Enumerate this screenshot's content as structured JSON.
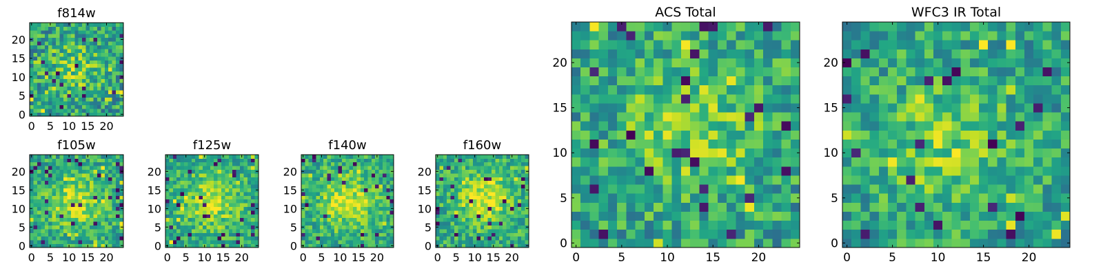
{
  "chart_data": [
    {
      "type": "heatmap",
      "title": "f814w",
      "grid_size": 25,
      "xlim": [
        -0.5,
        24.5
      ],
      "ylim": [
        -0.5,
        24.5
      ],
      "xticks": [
        0,
        5,
        10,
        15,
        20
      ],
      "yticks": [
        0,
        5,
        10,
        15,
        20
      ],
      "colormap": "viridis",
      "center": [
        12,
        12
      ],
      "peak": 0.72,
      "noise": 0.3,
      "seed": 11
    },
    {
      "type": "heatmap",
      "title": "f105w",
      "grid_size": 25,
      "xlim": [
        -0.5,
        24.5
      ],
      "ylim": [
        -0.5,
        24.5
      ],
      "xticks": [
        0,
        5,
        10,
        15,
        20
      ],
      "yticks": [
        0,
        5,
        10,
        15,
        20
      ],
      "colormap": "viridis",
      "center": [
        12,
        12
      ],
      "peak": 0.82,
      "noise": 0.24,
      "seed": 23
    },
    {
      "type": "heatmap",
      "title": "f125w",
      "grid_size": 25,
      "xlim": [
        -0.5,
        24.5
      ],
      "ylim": [
        -0.5,
        24.5
      ],
      "xticks": [
        0,
        5,
        10,
        15,
        20
      ],
      "yticks": [
        0,
        5,
        10,
        15,
        20
      ],
      "colormap": "viridis",
      "center": [
        12,
        12
      ],
      "peak": 0.82,
      "noise": 0.24,
      "seed": 37
    },
    {
      "type": "heatmap",
      "title": "f140w",
      "grid_size": 25,
      "xlim": [
        -0.5,
        24.5
      ],
      "ylim": [
        -0.5,
        24.5
      ],
      "xticks": [
        0,
        5,
        10,
        15,
        20
      ],
      "yticks": [
        0,
        5,
        10,
        15,
        20
      ],
      "colormap": "viridis",
      "center": [
        12,
        12
      ],
      "peak": 0.84,
      "noise": 0.24,
      "seed": 41
    },
    {
      "type": "heatmap",
      "title": "f160w",
      "grid_size": 25,
      "xlim": [
        -0.5,
        24.5
      ],
      "ylim": [
        -0.5,
        24.5
      ],
      "xticks": [
        0,
        5,
        10,
        15,
        20
      ],
      "yticks": [
        0,
        5,
        10,
        15,
        20
      ],
      "colormap": "viridis",
      "center": [
        13,
        13
      ],
      "peak": 0.86,
      "noise": 0.24,
      "seed": 53
    },
    {
      "type": "heatmap",
      "title": "ACS Total",
      "grid_size": 25,
      "xlim": [
        -0.5,
        24.5
      ],
      "ylim": [
        -0.5,
        24.5
      ],
      "xticks": [
        0,
        5,
        10,
        15,
        20
      ],
      "yticks": [
        0,
        5,
        10,
        15,
        20
      ],
      "colormap": "viridis",
      "center": [
        13,
        13
      ],
      "peak": 0.76,
      "noise": 0.28,
      "seed": 67
    },
    {
      "type": "heatmap",
      "title": "WFC3 IR Total",
      "grid_size": 25,
      "xlim": [
        -0.5,
        24.5
      ],
      "ylim": [
        -0.5,
        24.5
      ],
      "xticks": [
        0,
        5,
        10,
        15,
        20
      ],
      "yticks": [
        0,
        5,
        10,
        15,
        20
      ],
      "colormap": "viridis",
      "center": [
        11,
        11
      ],
      "peak": 0.74,
      "noise": 0.26,
      "seed": 79
    }
  ]
}
